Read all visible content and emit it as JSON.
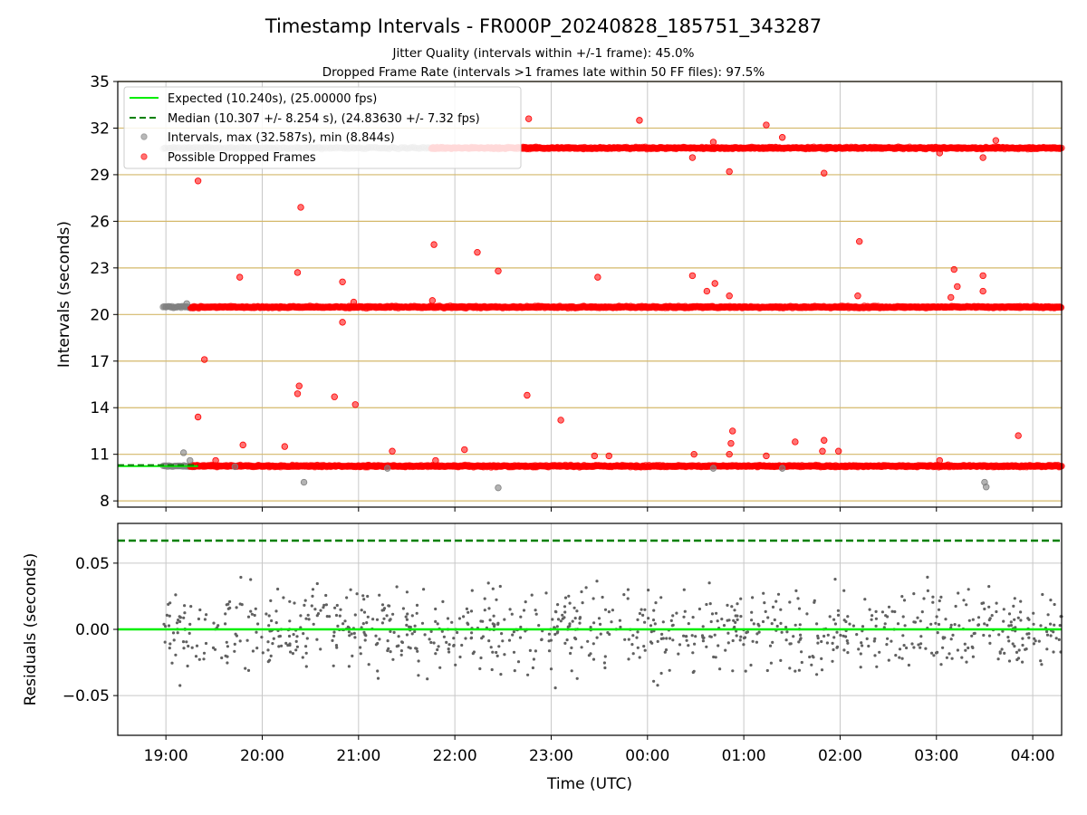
{
  "title": "Timestamp Intervals - FR000P_20240828_185751_343287",
  "subtitle_1": "Jitter Quality (intervals within +/-1 frame): 45.0%",
  "subtitle_2": "Dropped Frame Rate (intervals >1 frames late within 50 FF files): 97.5%",
  "colors": {
    "expected": "#00ee00",
    "median": "#008000",
    "interval_points": "#808080",
    "dropped_points": "#ff0000",
    "residual_points": "#606060",
    "frame_lines": "#d4b86a",
    "grid": "#c8c8c8"
  },
  "chart_data": [
    {
      "type": "scatter",
      "ylabel": "Intervals (seconds)",
      "xlabel": "",
      "x_axis": "time (UTC), 2024-08-28 18:30 to 2024-08-29 04:18",
      "y_ticks": [
        8,
        11,
        14,
        17,
        20,
        23,
        26,
        29,
        32,
        35
      ],
      "ylim": [
        7.6,
        35
      ],
      "grid": true,
      "legend_position": "top-left",
      "horizontal_lines": {
        "expected": 10.24,
        "median": 10.307,
        "frame_multiples": [
          10.24,
          20.48,
          30.72
        ]
      },
      "legend": [
        "Expected (10.240s), (25.00000 fps)",
        "Median (10.307 +/- 8.254 s), (24.83630 +/- 7.32 fps)",
        "Intervals, max (32.587s), min (8.844s)",
        "Possible Dropped Frames"
      ],
      "interval_stats": {
        "max": 32.587,
        "min": 8.844
      },
      "bands": [
        {
          "name": "Intervals",
          "y": 10.24,
          "start": "2024-08-28T18:58",
          "end": "2024-08-28T19:18"
        },
        {
          "name": "Intervals",
          "y": 20.48,
          "start": "2024-08-28T18:58",
          "end": "2024-08-28T19:15"
        },
        {
          "name": "Intervals",
          "y": 30.72,
          "start": "2024-08-28T18:58",
          "end": "2024-08-28T21:45"
        },
        {
          "name": "Possible Dropped Frames",
          "y": 10.24,
          "start": "2024-08-28T19:15",
          "end": "2024-08-29T04:18"
        },
        {
          "name": "Possible Dropped Frames",
          "y": 20.48,
          "start": "2024-08-28T19:15",
          "end": "2024-08-29T04:18"
        },
        {
          "name": "Possible Dropped Frames",
          "y": 30.72,
          "start": "2024-08-28T21:45",
          "end": "2024-08-29T04:18"
        }
      ],
      "outliers_dropped": [
        [
          "2024-08-28T19:20",
          28.6
        ],
        [
          "2024-08-28T19:20",
          13.4
        ],
        [
          "2024-08-28T19:24",
          17.1
        ],
        [
          "2024-08-28T19:31",
          10.6
        ],
        [
          "2024-08-28T19:46",
          22.4
        ],
        [
          "2024-08-28T19:48",
          11.6
        ],
        [
          "2024-08-28T20:14",
          11.5
        ],
        [
          "2024-08-28T20:22",
          22.7
        ],
        [
          "2024-08-28T20:22",
          14.9
        ],
        [
          "2024-08-28T20:23",
          15.4
        ],
        [
          "2024-08-28T20:24",
          26.9
        ],
        [
          "2024-08-28T20:45",
          14.7
        ],
        [
          "2024-08-28T20:50",
          22.1
        ],
        [
          "2024-08-28T20:50",
          19.5
        ],
        [
          "2024-08-28T20:58",
          14.2
        ],
        [
          "2024-08-28T20:57",
          20.8
        ],
        [
          "2024-08-28T21:21",
          11.2
        ],
        [
          "2024-08-28T21:47",
          24.5
        ],
        [
          "2024-08-28T21:46",
          20.9
        ],
        [
          "2024-08-28T21:48",
          10.6
        ],
        [
          "2024-08-28T22:06",
          11.3
        ],
        [
          "2024-08-28T22:14",
          24.0
        ],
        [
          "2024-08-28T22:27",
          22.8
        ],
        [
          "2024-08-28T22:46",
          32.6
        ],
        [
          "2024-08-28T22:45",
          14.8
        ],
        [
          "2024-08-28T23:06",
          13.2
        ],
        [
          "2024-08-28T23:29",
          22.4
        ],
        [
          "2024-08-28T23:27",
          10.9
        ],
        [
          "2024-08-28T23:36",
          10.9
        ],
        [
          "2024-08-28T23:55",
          32.5
        ],
        [
          "2024-08-29T00:28",
          30.1
        ],
        [
          "2024-08-29T00:28",
          22.5
        ],
        [
          "2024-08-29T00:29",
          11.0
        ],
        [
          "2024-08-29T00:37",
          21.5
        ],
        [
          "2024-08-29T00:41",
          31.1
        ],
        [
          "2024-08-29T00:42",
          22.0
        ],
        [
          "2024-08-29T00:51",
          29.2
        ],
        [
          "2024-08-29T00:51",
          21.2
        ],
        [
          "2024-08-29T00:52",
          11.7
        ],
        [
          "2024-08-29T00:53",
          12.5
        ],
        [
          "2024-08-29T00:51",
          11.0
        ],
        [
          "2024-08-29T01:14",
          32.2
        ],
        [
          "2024-08-29T01:14",
          10.9
        ],
        [
          "2024-08-29T01:24",
          31.4
        ],
        [
          "2024-08-29T01:32",
          11.8
        ],
        [
          "2024-08-29T01:50",
          29.1
        ],
        [
          "2024-08-29T01:49",
          11.2
        ],
        [
          "2024-08-29T01:50",
          11.9
        ],
        [
          "2024-08-29T01:59",
          11.2
        ],
        [
          "2024-08-29T02:11",
          21.2
        ],
        [
          "2024-08-29T02:12",
          24.7
        ],
        [
          "2024-08-29T03:02",
          30.4
        ],
        [
          "2024-08-29T03:02",
          10.6
        ],
        [
          "2024-08-29T03:09",
          21.1
        ],
        [
          "2024-08-29T03:11",
          22.9
        ],
        [
          "2024-08-29T03:13",
          21.8
        ],
        [
          "2024-08-29T03:29",
          22.5
        ],
        [
          "2024-08-29T03:29",
          21.5
        ],
        [
          "2024-08-29T03:29",
          30.1
        ],
        [
          "2024-08-29T03:37",
          31.2
        ],
        [
          "2024-08-29T03:51",
          12.2
        ]
      ],
      "outliers_intervals": [
        [
          "2024-08-28T19:11",
          11.1
        ],
        [
          "2024-08-28T19:15",
          10.6
        ],
        [
          "2024-08-28T19:13",
          20.7
        ],
        [
          "2024-08-28T20:26",
          9.2
        ],
        [
          "2024-08-28T22:27",
          8.844
        ],
        [
          "2024-08-29T03:30",
          9.2
        ],
        [
          "2024-08-29T03:31",
          8.9
        ],
        [
          "2024-08-28T21:18",
          10.1
        ],
        [
          "2024-08-29T00:41",
          10.1
        ],
        [
          "2024-08-29T01:24",
          10.1
        ],
        [
          "2024-08-28T19:43",
          10.2
        ]
      ]
    },
    {
      "type": "scatter",
      "ylabel": "Residuals (seconds)",
      "xlabel": "Time (UTC)",
      "x_ticks": [
        "19:00",
        "20:00",
        "21:00",
        "22:00",
        "23:00",
        "00:00",
        "01:00",
        "02:00",
        "03:00",
        "04:00"
      ],
      "y_ticks": [
        "−0.05",
        "0.00",
        "0.05"
      ],
      "ylim": [
        -0.08,
        0.08
      ],
      "grid": true,
      "horizontal_lines": {
        "expected": 0.0,
        "median": 0.067
      },
      "series": [
        {
          "points": "about 900 residuals, roughly between -0.05 and 0.05 s, spread evenly from 19:00 to 04:18"
        }
      ]
    }
  ]
}
